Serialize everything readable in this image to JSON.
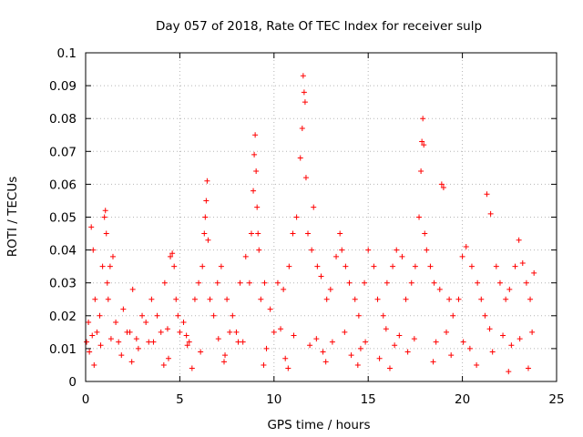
{
  "chart_data": {
    "type": "scatter",
    "title": "Day 057 of 2018, Rate Of TEC Index for receiver sulp",
    "xlabel": "GPS time / hours",
    "ylabel": "ROTI / TECUs",
    "xlim": [
      0,
      25
    ],
    "ylim": [
      0,
      0.1
    ],
    "xticks": [
      0,
      5,
      10,
      15,
      20,
      25
    ],
    "xtick_labels": [
      "0",
      "5",
      "10",
      "15",
      "20",
      "25"
    ],
    "yticks": [
      0,
      0.01,
      0.02,
      0.03,
      0.04,
      0.05,
      0.06,
      0.07,
      0.08,
      0.09,
      0.1
    ],
    "ytick_labels": [
      "0",
      "0.01",
      "0.02",
      "0.03",
      "0.04",
      "0.05",
      "0.06",
      "0.07",
      "0.08",
      "0.09",
      "0.1"
    ],
    "grid": true,
    "marker": "plus",
    "color": "#ff0000",
    "series": [
      {
        "name": "ROTI",
        "x": [
          0.05,
          0.15,
          0.3,
          0.4,
          0.5,
          0.6,
          0.75,
          0.9,
          1.0,
          1.05,
          1.1,
          1.15,
          1.2,
          1.3,
          1.45,
          1.6,
          1.75,
          2.0,
          2.2,
          2.5,
          2.7,
          3.0,
          3.2,
          3.5,
          3.8,
          4.0,
          4.2,
          4.5,
          4.6,
          4.7,
          4.8,
          4.9,
          5.0,
          5.2,
          5.5,
          5.8,
          6.0,
          6.2,
          6.3,
          6.35,
          6.4,
          6.45,
          6.5,
          6.6,
          6.8,
          7.0,
          7.2,
          7.5,
          7.8,
          8.0,
          8.2,
          8.5,
          8.7,
          8.8,
          8.9,
          8.95,
          9.0,
          9.05,
          9.1,
          9.15,
          9.2,
          9.3,
          9.5,
          9.8,
          10.0,
          10.2,
          10.5,
          10.8,
          11.0,
          11.2,
          11.4,
          11.5,
          11.55,
          11.6,
          11.65,
          11.7,
          11.8,
          12.0,
          12.1,
          12.3,
          12.5,
          12.8,
          13.0,
          13.3,
          13.5,
          13.6,
          13.8,
          14.0,
          14.3,
          14.5,
          14.8,
          15.0,
          15.3,
          15.5,
          15.8,
          16.0,
          16.3,
          16.5,
          16.8,
          17.0,
          17.3,
          17.5,
          17.7,
          17.8,
          17.85,
          17.9,
          17.95,
          18.0,
          18.1,
          18.3,
          18.5,
          18.8,
          18.9,
          19.0,
          19.3,
          19.5,
          19.8,
          20.0,
          20.2,
          20.5,
          20.8,
          21.0,
          21.2,
          21.3,
          21.5,
          21.8,
          22.0,
          22.3,
          22.5,
          22.8,
          23.0,
          23.2,
          23.4,
          23.6,
          23.8,
          0.2,
          0.8,
          1.9,
          2.8,
          3.6,
          4.4,
          5.4,
          6.1,
          7.4,
          8.1,
          9.6,
          10.6,
          11.9,
          12.6,
          13.1,
          14.1,
          14.6,
          15.6,
          16.4,
          17.1,
          18.6,
          19.4,
          20.4,
          21.6,
          22.6,
          23.5,
          0.35,
          1.35,
          2.35,
          3.35,
          4.35,
          5.35,
          7.05,
          7.65,
          8.35,
          10.35,
          11.05,
          12.25,
          13.75,
          14.85,
          15.95,
          16.65,
          17.45,
          19.15,
          20.05,
          21.45,
          22.15,
          23.05,
          23.7,
          0.45,
          2.45,
          4.15,
          5.65,
          7.35,
          9.45,
          10.75,
          12.75,
          14.45,
          16.15,
          18.45,
          20.75,
          22.45
        ],
        "y": [
          0.012,
          0.018,
          0.047,
          0.04,
          0.025,
          0.015,
          0.02,
          0.035,
          0.05,
          0.052,
          0.045,
          0.03,
          0.025,
          0.035,
          0.038,
          0.018,
          0.012,
          0.022,
          0.015,
          0.028,
          0.013,
          0.02,
          0.018,
          0.025,
          0.02,
          0.015,
          0.03,
          0.038,
          0.039,
          0.035,
          0.025,
          0.02,
          0.015,
          0.018,
          0.012,
          0.025,
          0.03,
          0.035,
          0.045,
          0.05,
          0.055,
          0.061,
          0.043,
          0.025,
          0.02,
          0.03,
          0.035,
          0.025,
          0.02,
          0.015,
          0.03,
          0.038,
          0.03,
          0.045,
          0.058,
          0.069,
          0.075,
          0.064,
          0.053,
          0.045,
          0.04,
          0.025,
          0.03,
          0.022,
          0.015,
          0.03,
          0.028,
          0.035,
          0.045,
          0.05,
          0.068,
          0.077,
          0.093,
          0.088,
          0.085,
          0.062,
          0.045,
          0.04,
          0.053,
          0.035,
          0.032,
          0.025,
          0.028,
          0.038,
          0.045,
          0.04,
          0.035,
          0.03,
          0.025,
          0.02,
          0.03,
          0.04,
          0.035,
          0.025,
          0.02,
          0.03,
          0.035,
          0.04,
          0.038,
          0.025,
          0.03,
          0.035,
          0.05,
          0.064,
          0.073,
          0.08,
          0.072,
          0.045,
          0.04,
          0.035,
          0.03,
          0.028,
          0.06,
          0.059,
          0.025,
          0.02,
          0.025,
          0.038,
          0.041,
          0.035,
          0.03,
          0.025,
          0.02,
          0.057,
          0.051,
          0.035,
          0.03,
          0.025,
          0.028,
          0.035,
          0.043,
          0.036,
          0.03,
          0.025,
          0.033,
          0.009,
          0.011,
          0.008,
          0.01,
          0.012,
          0.007,
          0.011,
          0.009,
          0.008,
          0.012,
          0.01,
          0.007,
          0.011,
          0.009,
          0.012,
          0.008,
          0.01,
          0.007,
          0.011,
          0.009,
          0.012,
          0.008,
          0.01,
          0.009,
          0.011,
          0.004,
          0.014,
          0.013,
          0.015,
          0.012,
          0.016,
          0.014,
          0.013,
          0.015,
          0.012,
          0.016,
          0.014,
          0.013,
          0.015,
          0.012,
          0.016,
          0.014,
          0.013,
          0.015,
          0.012,
          0.016,
          0.014,
          0.013,
          0.015,
          0.005,
          0.006,
          0.005,
          0.004,
          0.006,
          0.005,
          0.004,
          0.006,
          0.005,
          0.004,
          0.006,
          0.005,
          0.003
        ]
      }
    ]
  }
}
